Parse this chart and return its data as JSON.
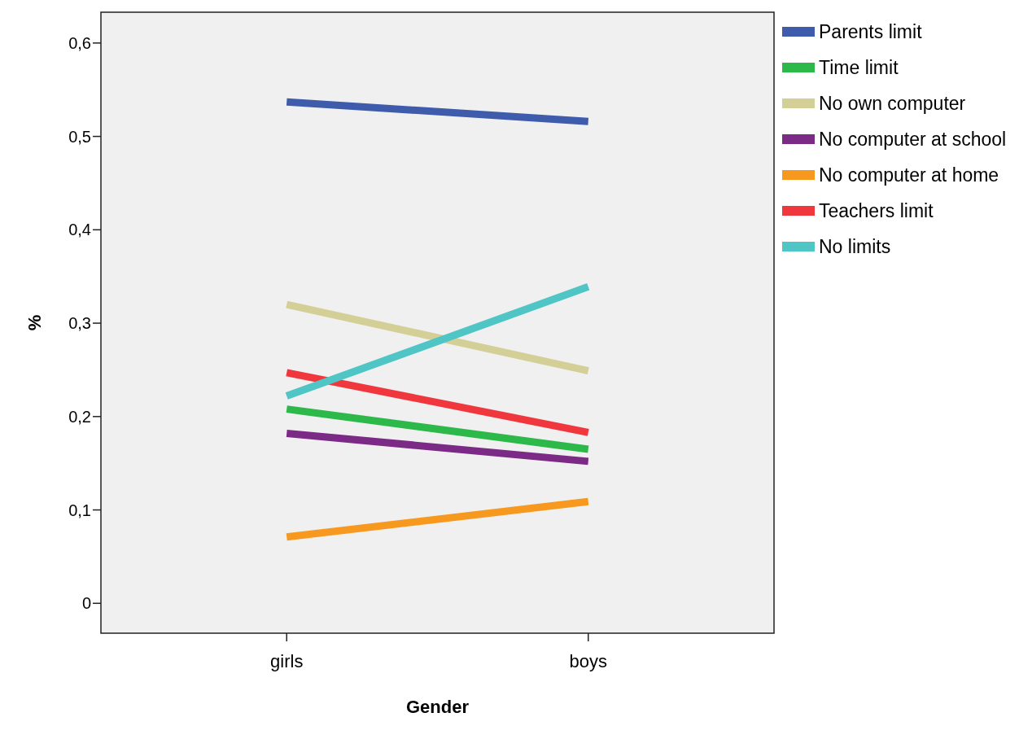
{
  "chart_data": {
    "type": "line",
    "xlabel": "Gender",
    "ylabel": "%",
    "categories": [
      "girls",
      "boys"
    ],
    "ylim": [
      -0.032,
      0.633
    ],
    "yticks": [
      0,
      {
        "value": 0.1,
        "label": "0,1"
      },
      {
        "value": 0.2,
        "label": "0,2"
      },
      {
        "value": 0.3,
        "label": "0,3"
      },
      {
        "value": 0.4,
        "label": "0,4"
      },
      {
        "value": 0.5,
        "label": "0,5"
      },
      {
        "value": 0.6,
        "label": "0,6"
      }
    ],
    "series": [
      {
        "name": "Parents limit",
        "color": "#3f5bab",
        "values": [
          0.537,
          0.516
        ]
      },
      {
        "name": "Time limit",
        "color": "#2db84a",
        "values": [
          0.208,
          0.165
        ]
      },
      {
        "name": "No own computer",
        "color": "#d4cf97",
        "values": [
          0.32,
          0.249
        ]
      },
      {
        "name": "No computer at school",
        "color": "#7b2a85",
        "values": [
          0.182,
          0.152
        ]
      },
      {
        "name": "No computer at home",
        "color": "#f7991f",
        "values": [
          0.071,
          0.109
        ]
      },
      {
        "name": "Teachers limit",
        "color": "#f0373d",
        "values": [
          0.247,
          0.183
        ]
      },
      {
        "name": "No limits",
        "color": "#4fc5c6",
        "values": [
          0.222,
          0.339
        ]
      }
    ],
    "legend": "top right",
    "grid": false,
    "marker": "none",
    "line_style": "solid"
  }
}
